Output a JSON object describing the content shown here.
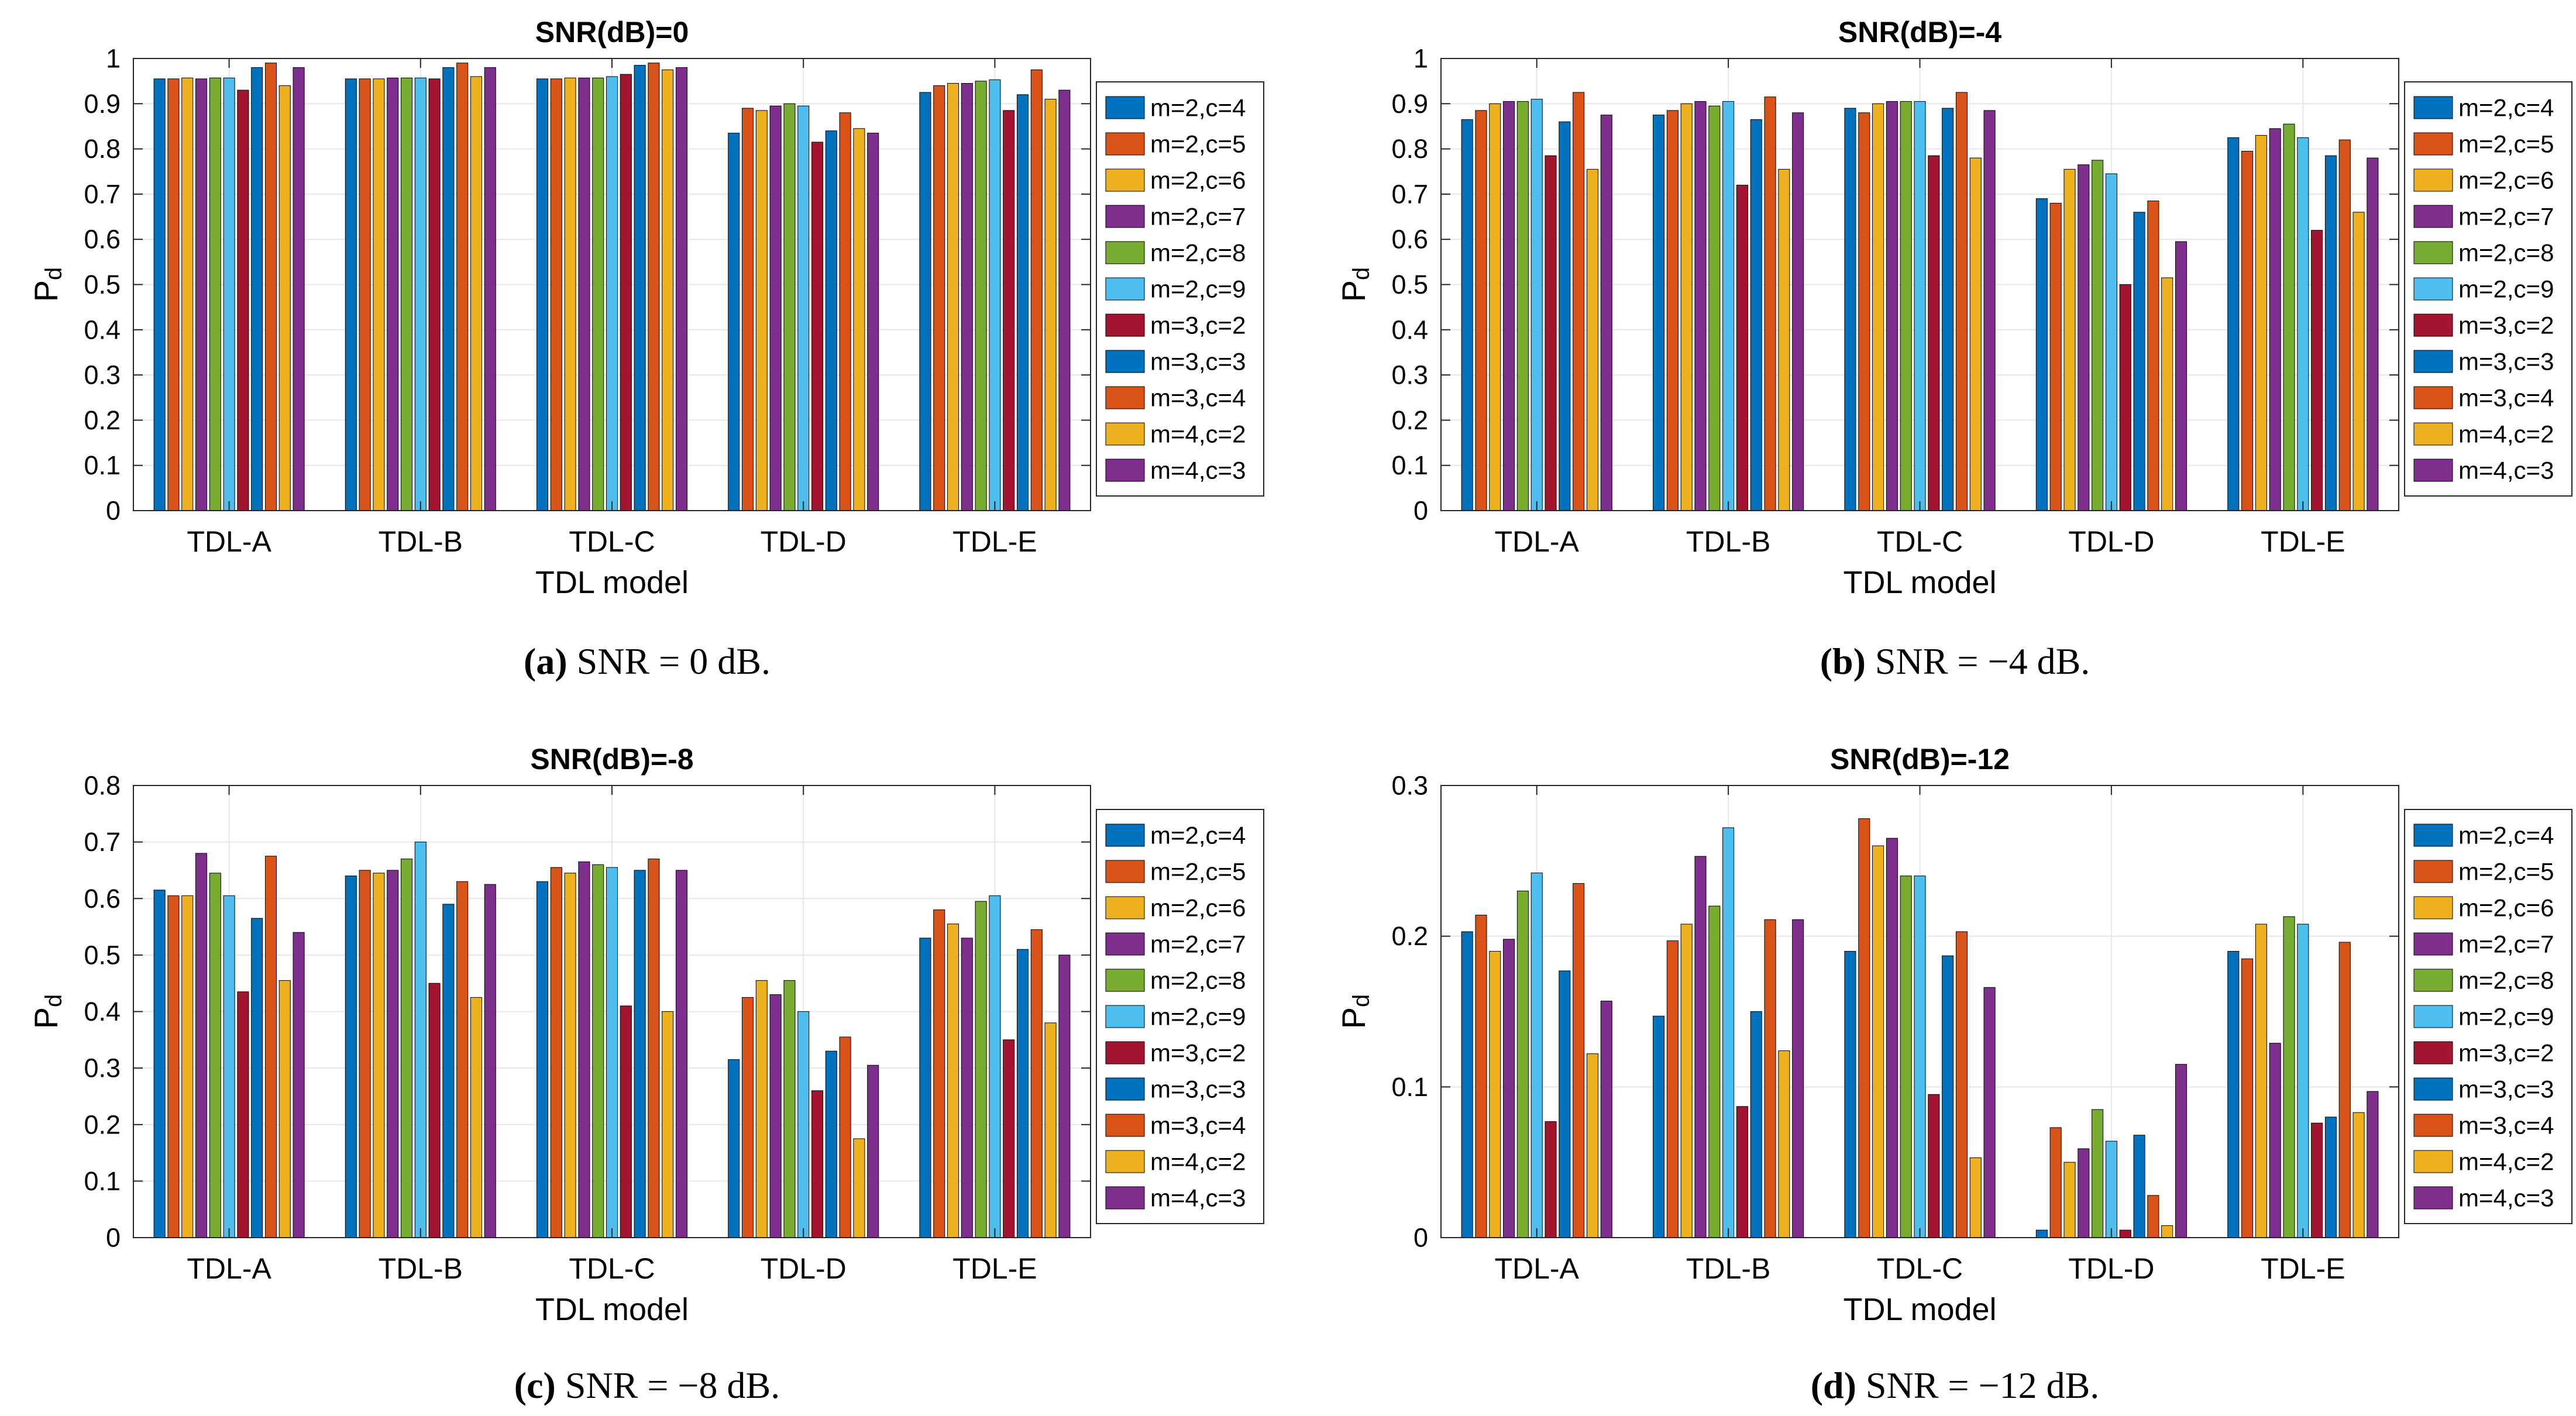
{
  "legend_labels": [
    "m=2,c=4",
    "m=2,c=5",
    "m=2,c=6",
    "m=2,c=7",
    "m=2,c=8",
    "m=2,c=9",
    "m=3,c=2",
    "m=3,c=3",
    "m=3,c=4",
    "m=4,c=2",
    "m=4,c=3"
  ],
  "series_colors": [
    "#0072BD",
    "#D95319",
    "#EDB120",
    "#7E2F8E",
    "#77AC30",
    "#4DBEEE",
    "#A2142F",
    "#0072BD",
    "#D95319",
    "#EDB120",
    "#7E2F8E"
  ],
  "chart_data": [
    {
      "type": "bar",
      "title": "SNR(dB)=0",
      "xlabel": "TDL model",
      "ylabel": "P",
      "ylabel_sub": "d",
      "categories": [
        "TDL-A",
        "TDL-B",
        "TDL-C",
        "TDL-D",
        "TDL-E"
      ],
      "ylim": [
        0,
        1
      ],
      "yticks": [
        0,
        0.1,
        0.2,
        0.3,
        0.4,
        0.5,
        0.6,
        0.7,
        0.8,
        0.9,
        1
      ],
      "ytick_labels": [
        "0",
        "0.1",
        "0.2",
        "0.3",
        "0.4",
        "0.5",
        "0.6",
        "0.7",
        "0.8",
        "0.9",
        "1"
      ],
      "grid": true,
      "legend_position": "right",
      "caption": {
        "letter": "(a)",
        "text": " SNR = 0 dB."
      },
      "series": [
        {
          "name": "m=2,c=4",
          "values": [
            0.955,
            0.955,
            0.955,
            0.835,
            0.925
          ]
        },
        {
          "name": "m=2,c=5",
          "values": [
            0.955,
            0.955,
            0.955,
            0.89,
            0.94
          ]
        },
        {
          "name": "m=2,c=6",
          "values": [
            0.957,
            0.955,
            0.957,
            0.885,
            0.945
          ]
        },
        {
          "name": "m=2,c=7",
          "values": [
            0.955,
            0.957,
            0.957,
            0.895,
            0.945
          ]
        },
        {
          "name": "m=2,c=8",
          "values": [
            0.957,
            0.957,
            0.957,
            0.9,
            0.95
          ]
        },
        {
          "name": "m=2,c=9",
          "values": [
            0.957,
            0.957,
            0.96,
            0.895,
            0.953
          ]
        },
        {
          "name": "m=3,c=2",
          "values": [
            0.93,
            0.955,
            0.965,
            0.815,
            0.885
          ]
        },
        {
          "name": "m=3,c=3",
          "values": [
            0.98,
            0.98,
            0.985,
            0.84,
            0.92
          ]
        },
        {
          "name": "m=3,c=4",
          "values": [
            0.99,
            0.99,
            0.99,
            0.88,
            0.975
          ]
        },
        {
          "name": "m=4,c=2",
          "values": [
            0.94,
            0.96,
            0.975,
            0.845,
            0.91
          ]
        },
        {
          "name": "m=4,c=3",
          "values": [
            0.98,
            0.98,
            0.98,
            0.835,
            0.93
          ]
        }
      ]
    },
    {
      "type": "bar",
      "title": "SNR(dB)=-4",
      "xlabel": "TDL model",
      "ylabel": "P",
      "ylabel_sub": "d",
      "categories": [
        "TDL-A",
        "TDL-B",
        "TDL-C",
        "TDL-D",
        "TDL-E"
      ],
      "ylim": [
        0,
        1
      ],
      "yticks": [
        0,
        0.1,
        0.2,
        0.3,
        0.4,
        0.5,
        0.6,
        0.7,
        0.8,
        0.9,
        1
      ],
      "ytick_labels": [
        "0",
        "0.1",
        "0.2",
        "0.3",
        "0.4",
        "0.5",
        "0.6",
        "0.7",
        "0.8",
        "0.9",
        "1"
      ],
      "grid": true,
      "legend_position": "right",
      "caption": {
        "letter": "(b)",
        "text": " SNR = −4 dB."
      },
      "series": [
        {
          "name": "m=2,c=4",
          "values": [
            0.865,
            0.875,
            0.89,
            0.69,
            0.825
          ]
        },
        {
          "name": "m=2,c=5",
          "values": [
            0.885,
            0.885,
            0.88,
            0.68,
            0.795
          ]
        },
        {
          "name": "m=2,c=6",
          "values": [
            0.9,
            0.9,
            0.9,
            0.755,
            0.83
          ]
        },
        {
          "name": "m=2,c=7",
          "values": [
            0.905,
            0.905,
            0.905,
            0.765,
            0.845
          ]
        },
        {
          "name": "m=2,c=8",
          "values": [
            0.905,
            0.895,
            0.905,
            0.775,
            0.855
          ]
        },
        {
          "name": "m=2,c=9",
          "values": [
            0.91,
            0.905,
            0.905,
            0.745,
            0.825
          ]
        },
        {
          "name": "m=3,c=2",
          "values": [
            0.785,
            0.72,
            0.785,
            0.5,
            0.62
          ]
        },
        {
          "name": "m=3,c=3",
          "values": [
            0.86,
            0.865,
            0.89,
            0.66,
            0.785
          ]
        },
        {
          "name": "m=3,c=4",
          "values": [
            0.925,
            0.915,
            0.925,
            0.685,
            0.82
          ]
        },
        {
          "name": "m=4,c=2",
          "values": [
            0.755,
            0.755,
            0.78,
            0.515,
            0.66
          ]
        },
        {
          "name": "m=4,c=3",
          "values": [
            0.875,
            0.88,
            0.885,
            0.595,
            0.78
          ]
        }
      ]
    },
    {
      "type": "bar",
      "title": "SNR(dB)=-8",
      "xlabel": "TDL model",
      "ylabel": "P",
      "ylabel_sub": "d",
      "categories": [
        "TDL-A",
        "TDL-B",
        "TDL-C",
        "TDL-D",
        "TDL-E"
      ],
      "ylim": [
        0,
        0.8
      ],
      "yticks": [
        0,
        0.1,
        0.2,
        0.3,
        0.4,
        0.5,
        0.6,
        0.7,
        0.8
      ],
      "ytick_labels": [
        "0",
        "0.1",
        "0.2",
        "0.3",
        "0.4",
        "0.5",
        "0.6",
        "0.7",
        "0.8"
      ],
      "grid": true,
      "legend_position": "right",
      "caption": {
        "letter": "(c)",
        "text": " SNR = −8 dB."
      },
      "series": [
        {
          "name": "m=2,c=4",
          "values": [
            0.615,
            0.64,
            0.63,
            0.315,
            0.53
          ]
        },
        {
          "name": "m=2,c=5",
          "values": [
            0.605,
            0.65,
            0.655,
            0.425,
            0.58
          ]
        },
        {
          "name": "m=2,c=6",
          "values": [
            0.605,
            0.645,
            0.645,
            0.455,
            0.555
          ]
        },
        {
          "name": "m=2,c=7",
          "values": [
            0.68,
            0.65,
            0.665,
            0.43,
            0.53
          ]
        },
        {
          "name": "m=2,c=8",
          "values": [
            0.645,
            0.67,
            0.66,
            0.455,
            0.595
          ]
        },
        {
          "name": "m=2,c=9",
          "values": [
            0.605,
            0.7,
            0.655,
            0.4,
            0.605
          ]
        },
        {
          "name": "m=3,c=2",
          "values": [
            0.435,
            0.45,
            0.41,
            0.26,
            0.35
          ]
        },
        {
          "name": "m=3,c=3",
          "values": [
            0.565,
            0.59,
            0.65,
            0.33,
            0.51
          ]
        },
        {
          "name": "m=3,c=4",
          "values": [
            0.675,
            0.63,
            0.67,
            0.355,
            0.545
          ]
        },
        {
          "name": "m=4,c=2",
          "values": [
            0.455,
            0.425,
            0.4,
            0.175,
            0.38
          ]
        },
        {
          "name": "m=4,c=3",
          "values": [
            0.54,
            0.625,
            0.65,
            0.305,
            0.5
          ]
        }
      ]
    },
    {
      "type": "bar",
      "title": "SNR(dB)=-12",
      "xlabel": "TDL model",
      "ylabel": "P",
      "ylabel_sub": "d",
      "categories": [
        "TDL-A",
        "TDL-B",
        "TDL-C",
        "TDL-D",
        "TDL-E"
      ],
      "ylim": [
        0,
        0.3
      ],
      "yticks": [
        0,
        0.1,
        0.2,
        0.3
      ],
      "ytick_labels": [
        "0",
        "0.1",
        "0.2",
        "0.3"
      ],
      "grid": true,
      "legend_position": "right",
      "caption": {
        "letter": "(d)",
        "text": " SNR = −12 dB."
      },
      "series": [
        {
          "name": "m=2,c=4",
          "values": [
            0.203,
            0.147,
            0.19,
            0.005,
            0.19
          ]
        },
        {
          "name": "m=2,c=5",
          "values": [
            0.214,
            0.197,
            0.278,
            0.073,
            0.185
          ]
        },
        {
          "name": "m=2,c=6",
          "values": [
            0.19,
            0.208,
            0.26,
            0.05,
            0.208
          ]
        },
        {
          "name": "m=2,c=7",
          "values": [
            0.198,
            0.253,
            0.265,
            0.059,
            0.129
          ]
        },
        {
          "name": "m=2,c=8",
          "values": [
            0.23,
            0.22,
            0.24,
            0.085,
            0.213
          ]
        },
        {
          "name": "m=2,c=9",
          "values": [
            0.242,
            0.272,
            0.24,
            0.064,
            0.208
          ]
        },
        {
          "name": "m=3,c=2",
          "values": [
            0.077,
            0.087,
            0.095,
            0.005,
            0.076
          ]
        },
        {
          "name": "m=3,c=3",
          "values": [
            0.177,
            0.15,
            0.187,
            0.068,
            0.08
          ]
        },
        {
          "name": "m=3,c=4",
          "values": [
            0.235,
            0.211,
            0.203,
            0.028,
            0.196
          ]
        },
        {
          "name": "m=4,c=2",
          "values": [
            0.122,
            0.124,
            0.053,
            0.008,
            0.083
          ]
        },
        {
          "name": "m=4,c=3",
          "values": [
            0.157,
            0.211,
            0.166,
            0.115,
            0.097
          ]
        }
      ]
    }
  ]
}
